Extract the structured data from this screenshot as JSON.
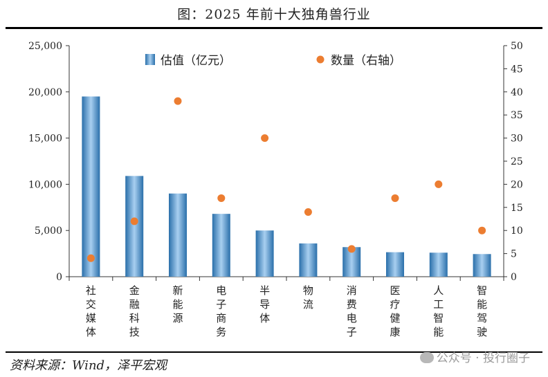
{
  "title": "图：2025 年前十大独角兽行业",
  "source": "资料来源：Wind，泽平宏观",
  "watermark": "公众号 · 投行圈子",
  "colors": {
    "bar": "#2f78b7",
    "bar_light": "#9cc6ea",
    "dot": "#ec7d31"
  },
  "chart_data": {
    "type": "bar",
    "categories": [
      "社交媒体",
      "金融科技",
      "新能源",
      "电子商务",
      "半导体",
      "物流",
      "消费电子",
      "医疗健康",
      "人工智能",
      "智能驾驶"
    ],
    "series": [
      {
        "name": "估值（亿元）",
        "type": "bar",
        "axis": "left",
        "values": [
          19500,
          10900,
          9000,
          6800,
          5000,
          3600,
          3200,
          2650,
          2600,
          2450
        ]
      },
      {
        "name": "数量（右轴）",
        "type": "scatter",
        "axis": "right",
        "values": [
          4,
          12,
          38,
          17,
          30,
          14,
          6,
          17,
          20,
          10
        ]
      }
    ],
    "ylim": [
      0,
      25000
    ],
    "yticks": [
      "0",
      "5,000",
      "10,000",
      "15,000",
      "20,000",
      "25,000"
    ],
    "y2lim": [
      0,
      50
    ],
    "y2ticks": [
      "0",
      "5",
      "10",
      "15",
      "20",
      "25",
      "30",
      "35",
      "40",
      "45",
      "50"
    ],
    "legend": "top"
  }
}
